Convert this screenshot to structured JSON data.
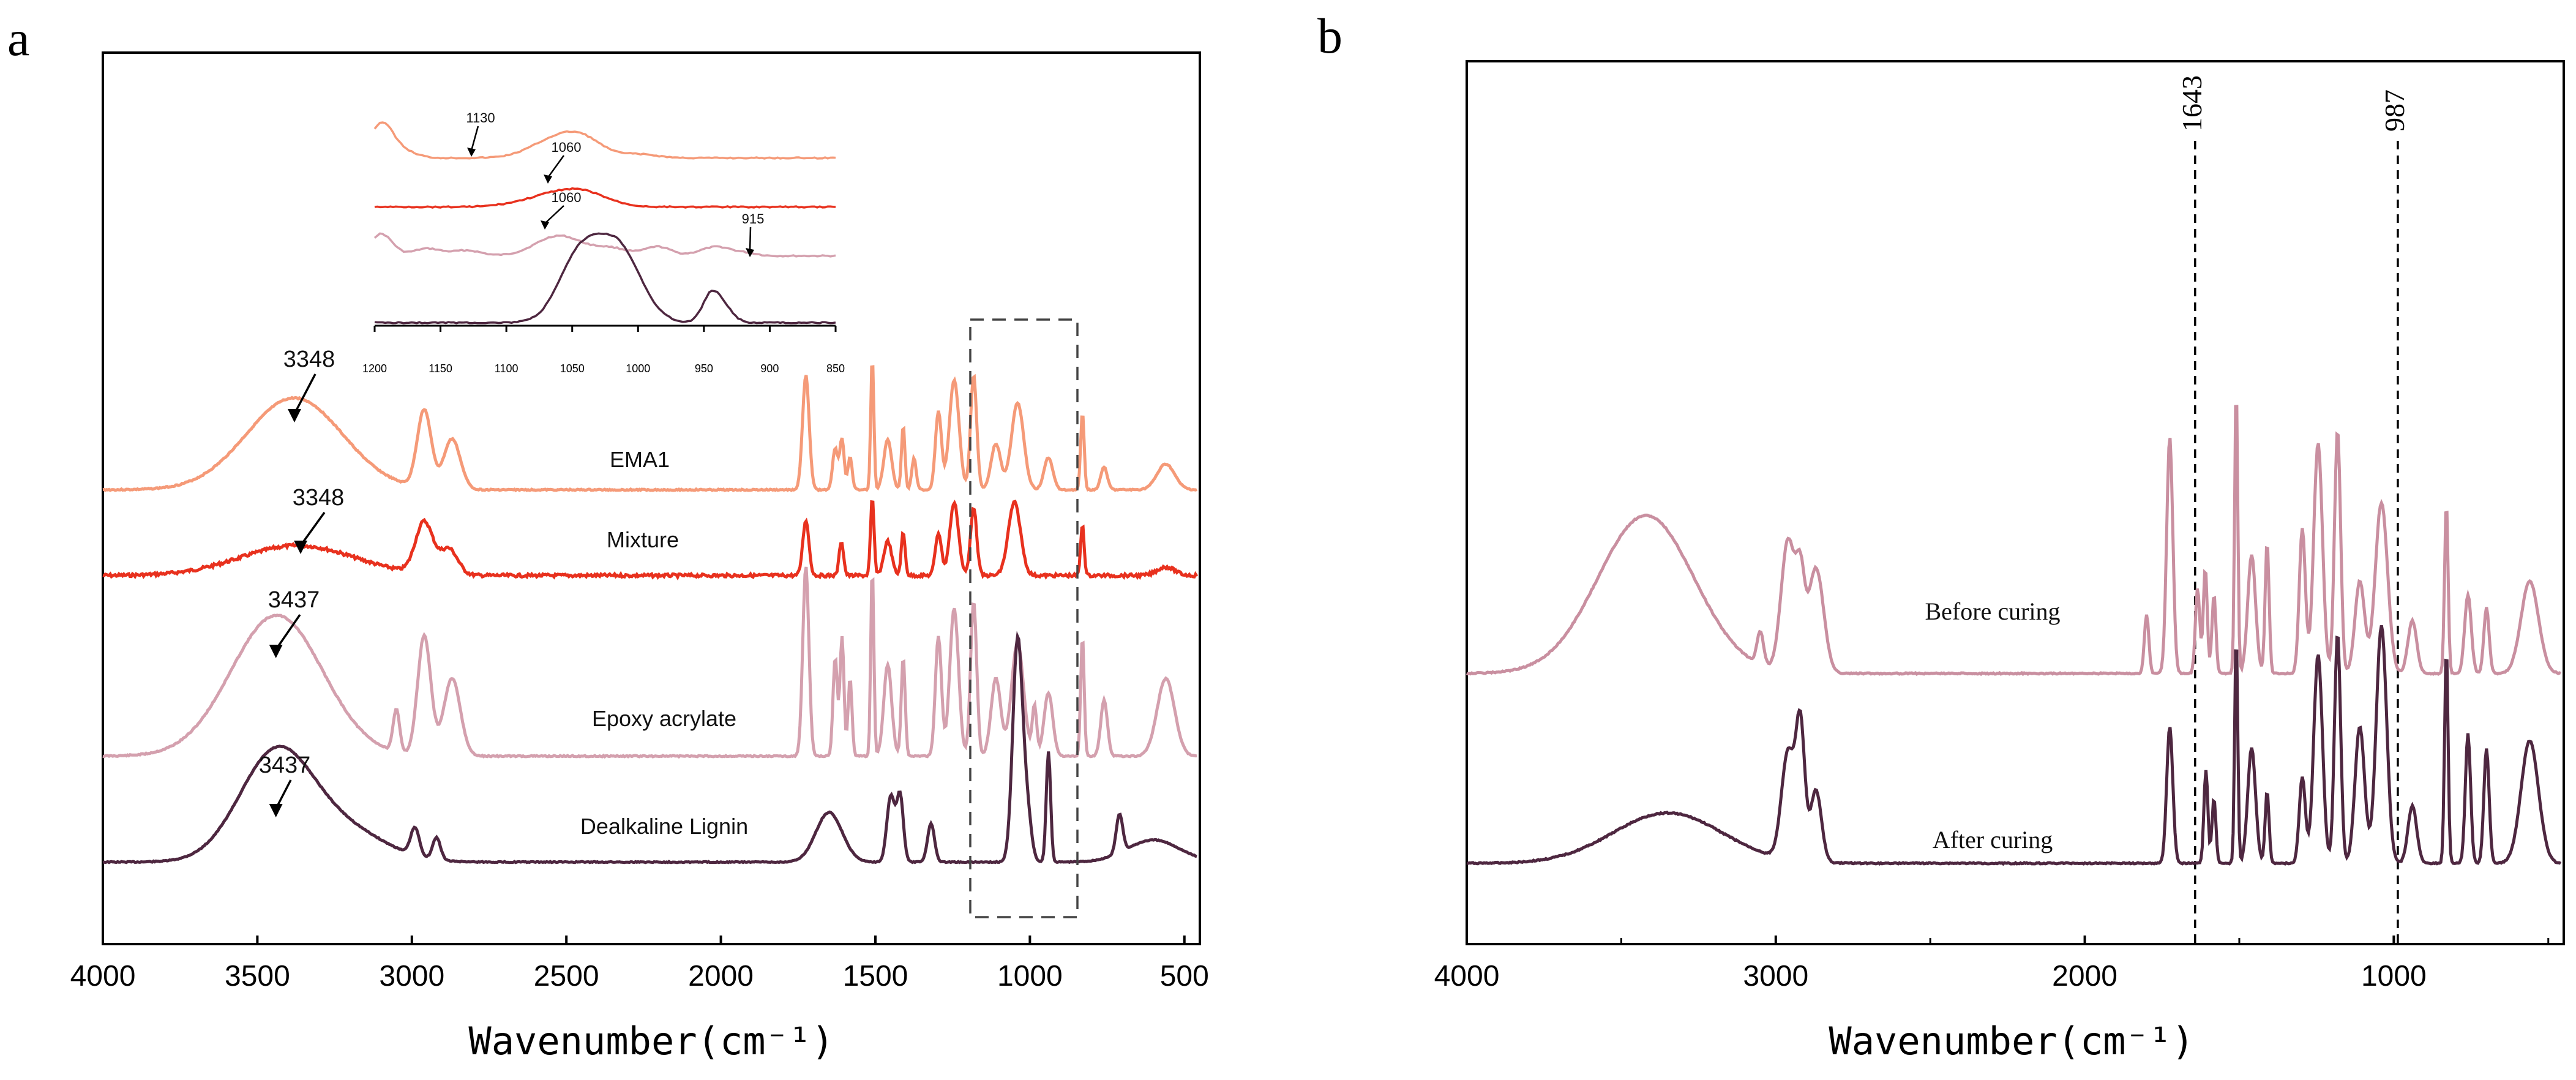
{
  "chart_data": [
    {
      "panel_label": "a",
      "type": "line",
      "xlabel": "Wavenumber(cm⁻¹)",
      "xlim": [
        4000,
        450
      ],
      "xticks": [
        "4000",
        "3500",
        "3000",
        "2500",
        "2000",
        "1500",
        "1000",
        "500"
      ],
      "series": [
        {
          "name": "EMA1",
          "color": "#F59A78"
        },
        {
          "name": "Mixture",
          "color": "#E8311E"
        },
        {
          "name": "Epoxy acrylate",
          "color": "#D4A0AE"
        },
        {
          "name": "Dealkaline Lignin",
          "color": "#4E2740"
        }
      ],
      "annotations": [
        {
          "text": "3348",
          "x": 3380,
          "series": "EMA1"
        },
        {
          "text": "3348",
          "x": 3360,
          "series": "Mixture"
        },
        {
          "text": "3437",
          "x": 3440,
          "series": "Epoxy acrylate"
        },
        {
          "text": "3437",
          "x": 3440,
          "series": "Dealkaline Lignin"
        }
      ],
      "highlight_box": {
        "x_range": [
          1200,
          850
        ],
        "style": "dashed"
      },
      "inset": {
        "xlim": [
          1200,
          850
        ],
        "xticks": [
          "1200",
          "1150",
          "1100",
          "1050",
          "1000",
          "950",
          "900",
          "850"
        ],
        "annotations": [
          {
            "text": "1130",
            "x": 1130
          },
          {
            "text": "1060",
            "x": 1060
          },
          {
            "text": "1060",
            "x": 1060
          },
          {
            "text": "915",
            "x": 915
          }
        ]
      }
    },
    {
      "panel_label": "b",
      "type": "line",
      "xlabel": "Wavenumber(cm⁻¹)",
      "xlim": [
        4000,
        450
      ],
      "xticks": [
        "4000",
        "3000",
        "2000",
        "1000"
      ],
      "series": [
        {
          "name": "Before curing",
          "color": "#C98FA0"
        },
        {
          "name": "After curing",
          "color": "#4E2740"
        }
      ],
      "reference_lines": [
        {
          "x": 1643,
          "label": "1643"
        },
        {
          "x": 987,
          "label": "987"
        }
      ]
    }
  ]
}
